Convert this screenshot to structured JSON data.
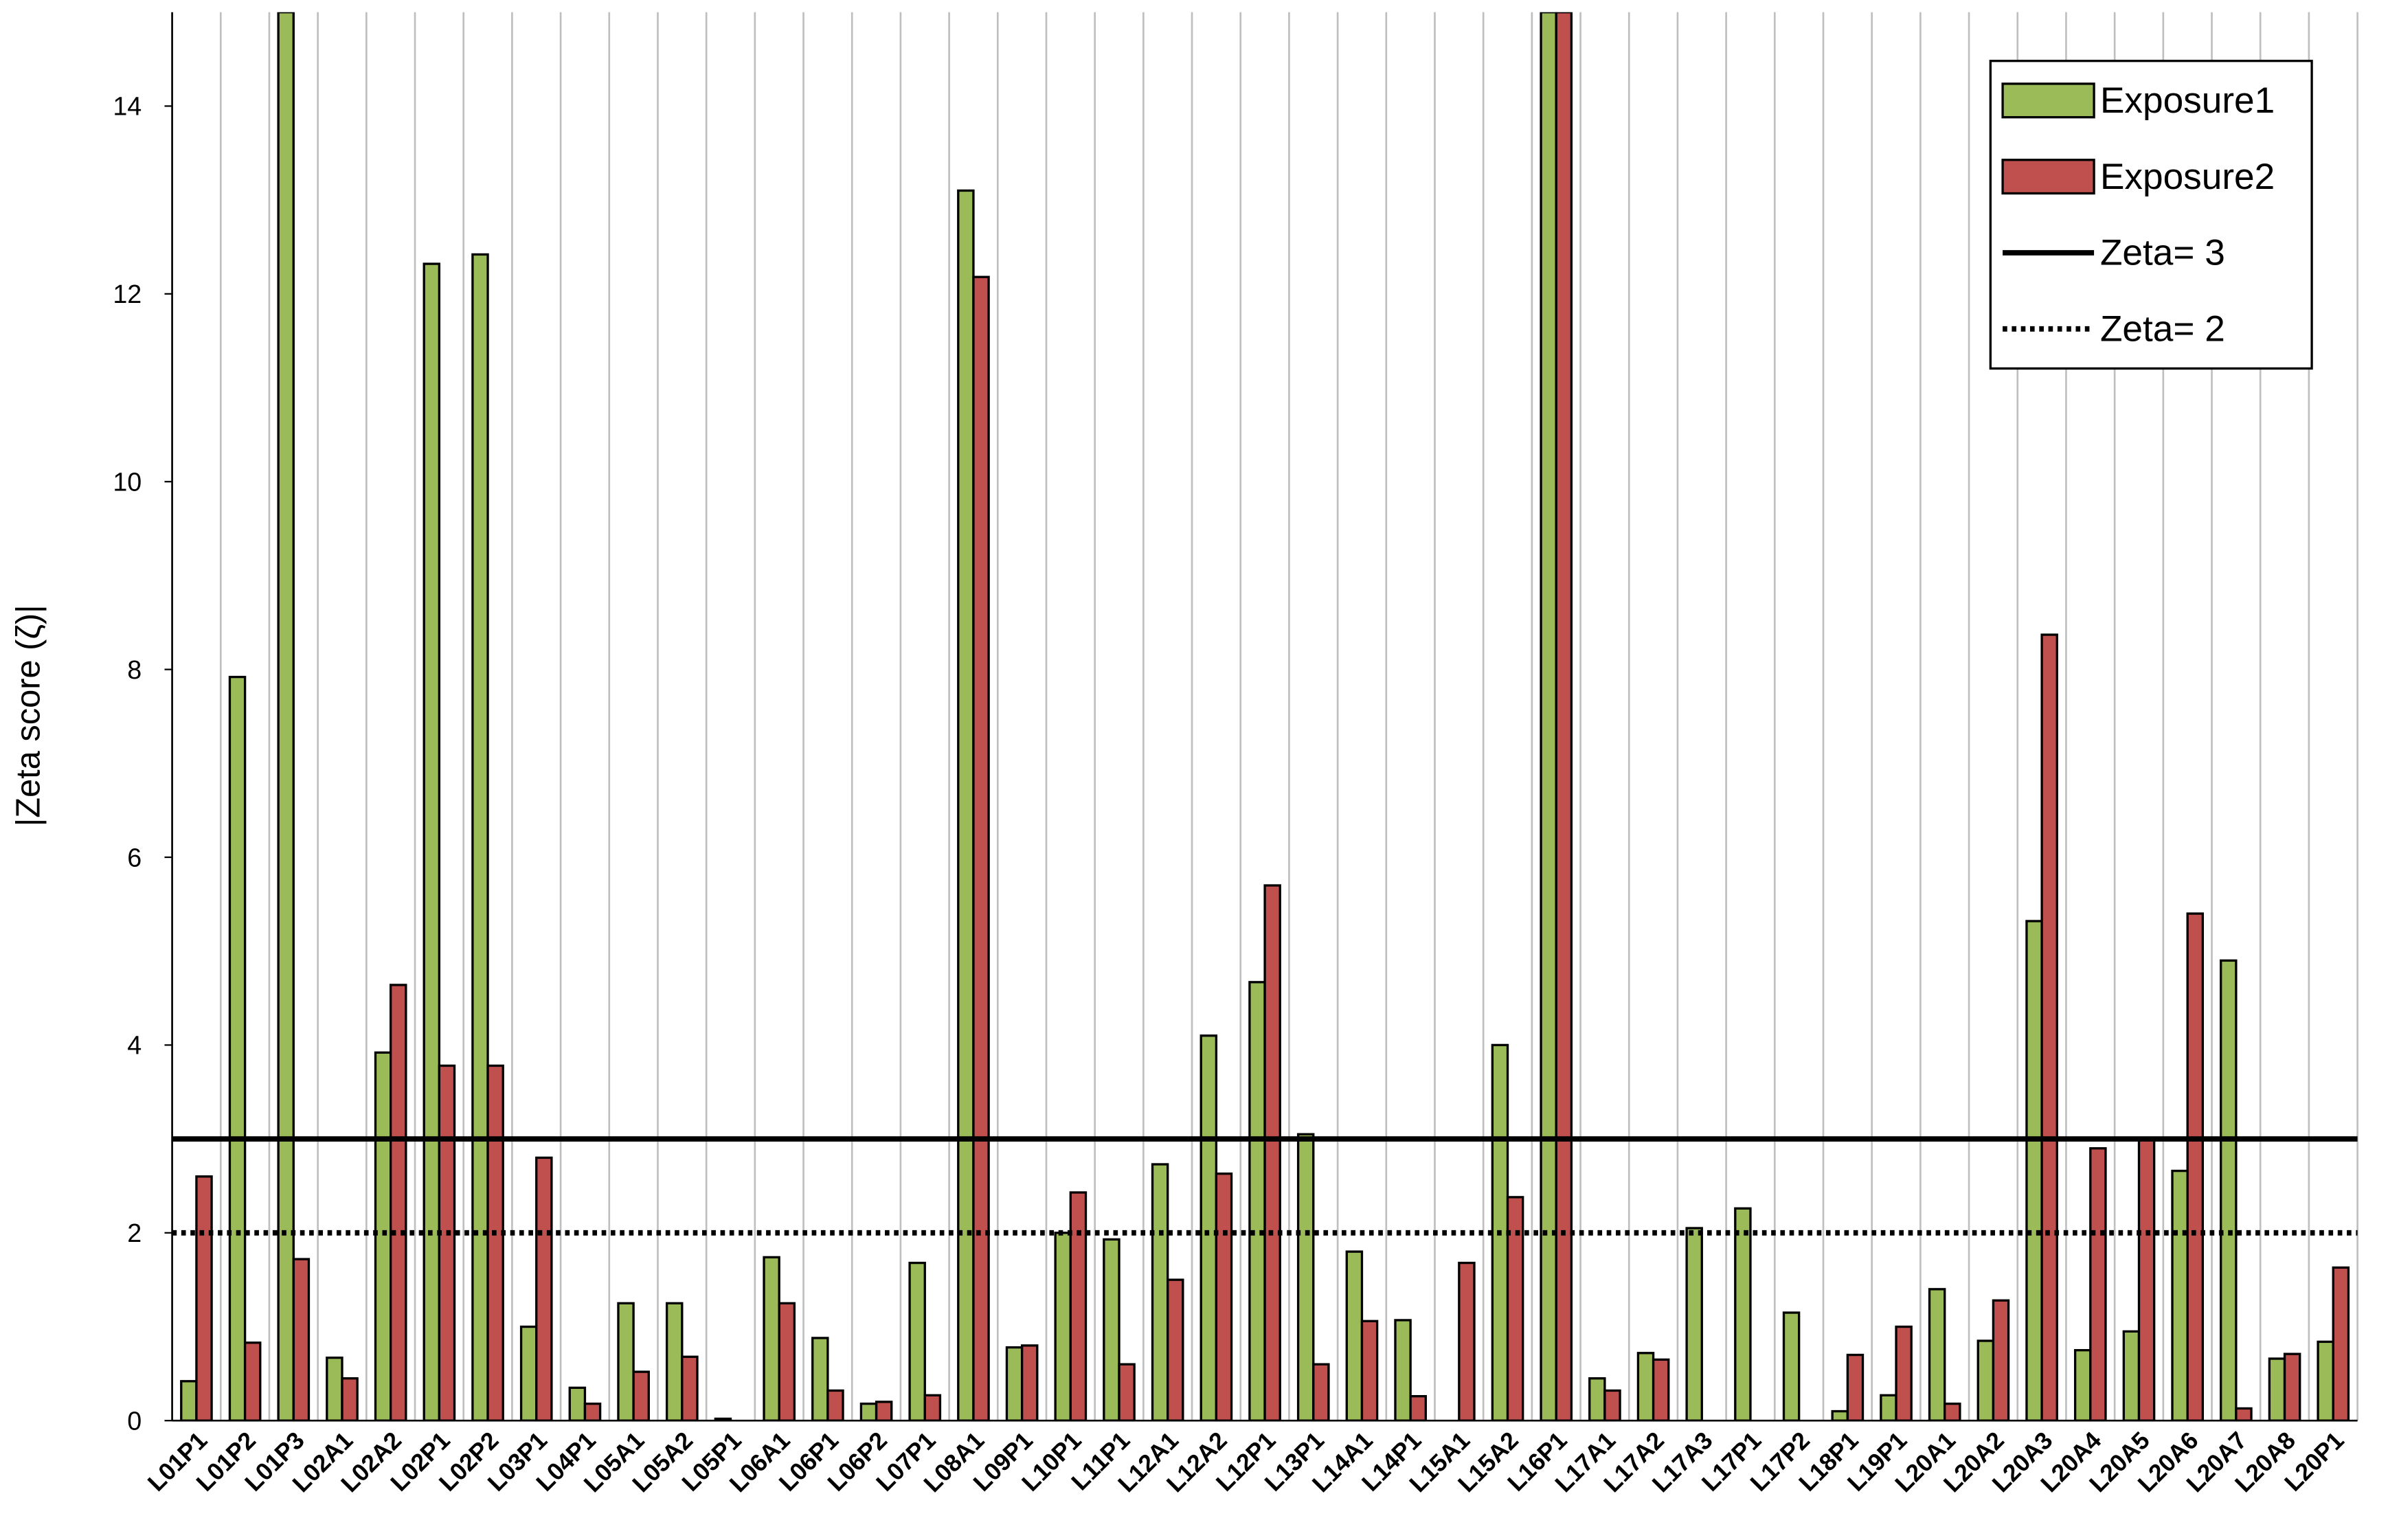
{
  "chart_data": {
    "type": "bar",
    "y_label": "|Zeta score (ζ)|",
    "categories": [
      "L01P1",
      "L01P2",
      "L01P3",
      "L02A1",
      "L02A2",
      "L02P1",
      "L02P2",
      "L03P1",
      "L04P1",
      "L05A1",
      "L05A2",
      "L05P1",
      "L06A1",
      "L06P1",
      "L06P2",
      "L07P1",
      "L08A1",
      "L09P1",
      "L10P1",
      "L11P1",
      "L12A1",
      "L12A2",
      "L12P1",
      "L13P1",
      "L14A1",
      "L14P1",
      "L15A1",
      "L15A2",
      "L16P1",
      "L17A1",
      "L17A2",
      "L17A3",
      "L17P1",
      "L17P2",
      "L18P1",
      "L19P1",
      "L20A1",
      "L20A2",
      "L20A3",
      "L20A4",
      "L20A5",
      "L20A6",
      "L20A7",
      "L20A8",
      "L20P1"
    ],
    "series": [
      {
        "name": "Exposure1",
        "color": "#9bbb59",
        "values": [
          0.42,
          7.92,
          15,
          0.67,
          3.92,
          12.32,
          12.42,
          1.0,
          0.35,
          1.25,
          1.25,
          0.02,
          1.74,
          0.88,
          0.18,
          1.68,
          13.1,
          0.78,
          2.0,
          1.93,
          2.73,
          4.1,
          4.67,
          3.05,
          1.8,
          1.07,
          0,
          4.0,
          15,
          0.45,
          0.72,
          2.05,
          2.26,
          1.15,
          0.1,
          0.27,
          1.4,
          0.85,
          5.32,
          0.75,
          0.95,
          2.66,
          4.9,
          0.66,
          0.84
        ]
      },
      {
        "name": "Exposure2",
        "color": "#c0504d",
        "values": [
          2.6,
          0.83,
          1.72,
          0.45,
          4.64,
          3.78,
          3.78,
          2.8,
          0.18,
          0.52,
          0.68,
          0,
          1.25,
          0.32,
          0.2,
          0.27,
          12.18,
          0.8,
          2.43,
          0.6,
          1.5,
          2.63,
          5.7,
          0.6,
          1.06,
          0.26,
          1.68,
          2.38,
          15,
          0.32,
          0.65,
          0,
          0,
          0,
          0.7,
          1.0,
          0.18,
          1.28,
          8.37,
          2.9,
          3.0,
          5.4,
          0.13,
          0.71,
          1.63
        ]
      }
    ],
    "reference_lines": [
      {
        "name": "Zeta= 3",
        "value": 3,
        "style": "solid",
        "color": "#000000"
      },
      {
        "name": "Zeta= 2",
        "value": 2,
        "style": "dotted",
        "color": "#000000"
      }
    ],
    "ylim": [
      0,
      15
    ],
    "yticks": [
      0,
      2,
      4,
      6,
      8,
      10,
      12,
      14
    ],
    "grid": "vertical",
    "legend": "upper right"
  }
}
